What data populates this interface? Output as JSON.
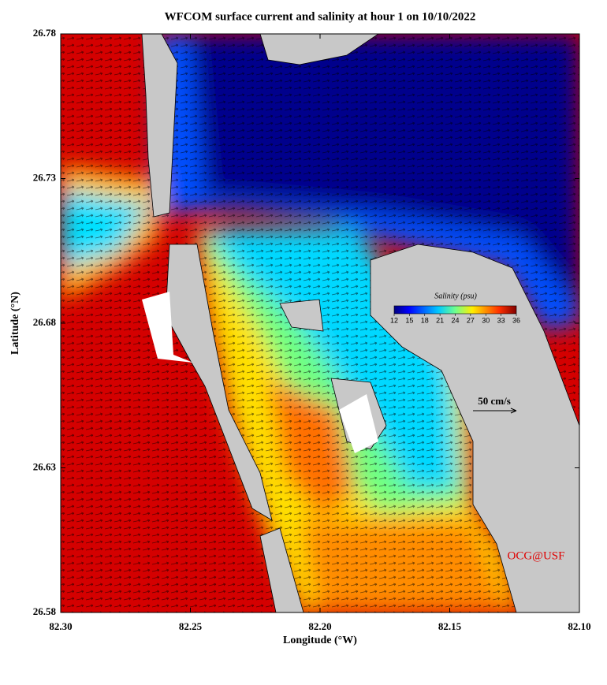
{
  "title": "WFCOM surface current and salinity at hour 1 on 10/10/2022",
  "x_axis": {
    "label": "Longitude (°W)",
    "lim": [
      82.3,
      82.1
    ],
    "ticks": [
      {
        "value": 82.3,
        "label": "82.30"
      },
      82.25,
      {
        "value": 82.2,
        "label": "82.20"
      },
      82.15,
      {
        "value": 82.1,
        "label": "82.10"
      }
    ]
  },
  "y_axis": {
    "label": "Latitude (°N)",
    "lim": [
      26.58,
      26.78
    ],
    "ticks": [
      26.58,
      26.63,
      26.68,
      26.73,
      26.78
    ]
  },
  "colorbar": {
    "title": "Salinity (psu)",
    "lim": [
      12,
      36
    ],
    "ticks": [
      12,
      15,
      18,
      21,
      24,
      27,
      30,
      33,
      36
    ]
  },
  "scale_label": "50 cm/s",
  "credit": "OCG@USF"
}
